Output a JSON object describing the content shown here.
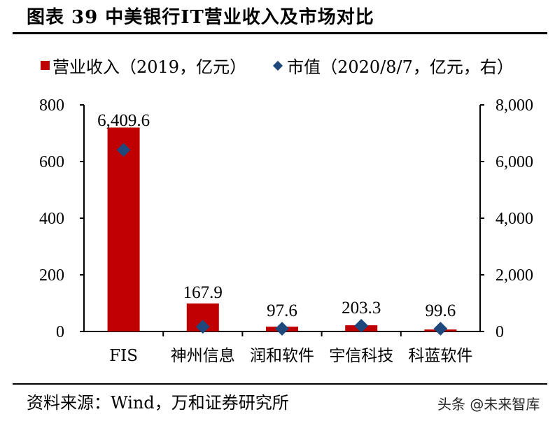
{
  "header": {
    "title": "图表 39   中美银行IT营业收入及市场对比"
  },
  "legend": {
    "revenue_label": "营业收入（2019，亿元）",
    "market_cap_label": "市值（2020/8/7，亿元，右）"
  },
  "footer": {
    "source": "资料来源：Wind，万和证券研究所",
    "watermark": "头条 @未来智库"
  },
  "colors": {
    "revenue": "#c00000",
    "market_cap": "#1f497d"
  },
  "chart_data": {
    "type": "bar",
    "title": "中美银行IT营业收入及市场对比",
    "categories": [
      "FIS",
      "神州信息",
      "润和软件",
      "宇信科技",
      "科蓝软件"
    ],
    "series": [
      {
        "name": "营业收入（2019，亿元）",
        "type": "bar",
        "axis": "left",
        "values": [
          720,
          99,
          17,
          22,
          7
        ]
      },
      {
        "name": "市值（2020/8/7，亿元，右）",
        "type": "scatter",
        "marker": "diamond",
        "axis": "right",
        "values": [
          6409.6,
          167.9,
          97.6,
          203.3,
          99.6
        ]
      }
    ],
    "data_labels": [
      "6,409.6",
      "167.9",
      "97.6",
      "203.3",
      "99.6"
    ],
    "ylim_left": [
      0,
      800
    ],
    "yticks_left": [
      "0",
      "200",
      "400",
      "600",
      "800"
    ],
    "ylim_right": [
      0,
      8000
    ],
    "yticks_right": [
      "0",
      "2,000",
      "4,000",
      "6,000",
      "8,000"
    ],
    "xlabel": "",
    "ylabel": "",
    "grid": false,
    "legend_position": "top"
  }
}
